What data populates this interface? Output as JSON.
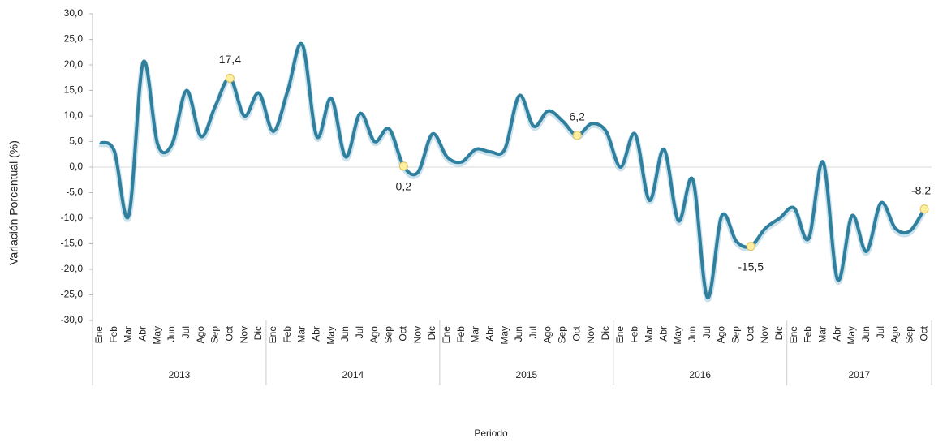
{
  "chart_data": {
    "type": "line",
    "y_label": "Variación Porcentual (%)",
    "x_label": "Periodo",
    "groups": [
      {
        "name": "2013",
        "categories": [
          "Ene",
          "Feb",
          "Mar",
          "Abr",
          "May",
          "Jun",
          "Jul",
          "Ago",
          "Sep",
          "Oct",
          "Nov",
          "Dic"
        ]
      },
      {
        "name": "2014",
        "categories": [
          "Ene",
          "Feb",
          "Mar",
          "Abr",
          "May",
          "Jun",
          "Jul",
          "Ago",
          "Sep",
          "Oct",
          "Nov",
          "Dic"
        ]
      },
      {
        "name": "2015",
        "categories": [
          "Ene",
          "Feb",
          "Mar",
          "Abr",
          "May",
          "Jun",
          "Jul",
          "Ago",
          "Sep",
          "Oct",
          "Nov",
          "Dic"
        ]
      },
      {
        "name": "2016",
        "categories": [
          "Ene",
          "Feb",
          "Mar",
          "Abr",
          "May",
          "Jun",
          "Jul",
          "Ago",
          "Sep",
          "Oct",
          "Nov",
          "Dic"
        ]
      },
      {
        "name": "2017",
        "categories": [
          "Ene",
          "Feb",
          "Mar",
          "Abr",
          "May",
          "Jun",
          "Jul",
          "Ago",
          "Sep",
          "Oct"
        ]
      }
    ],
    "values": [
      4.8,
      3.2,
      -9.5,
      20.5,
      4.5,
      4.5,
      15,
      6,
      12,
      17.4,
      10,
      14.5,
      7,
      15,
      24,
      6,
      13.5,
      2,
      10.5,
      5,
      7.5,
      0.2,
      -1,
      6.5,
      2,
      1,
      3.5,
      3,
      3.5,
      14,
      8,
      11,
      9,
      6.2,
      8.5,
      7,
      0,
      6.5,
      -6.5,
      3.5,
      -10.5,
      -2.5,
      -25.5,
      -9.5,
      -14.5,
      -15.5,
      -12,
      -10,
      -8,
      -14,
      1,
      -22,
      -9.5,
      -16.5,
      -7,
      -12,
      -12.5,
      -8.2
    ],
    "value_labels": [
      null,
      null,
      null,
      null,
      null,
      null,
      null,
      null,
      null,
      "17,4",
      null,
      null,
      null,
      null,
      null,
      null,
      null,
      null,
      null,
      null,
      null,
      "0,2",
      null,
      null,
      null,
      null,
      null,
      null,
      null,
      null,
      null,
      null,
      null,
      "6,2",
      null,
      null,
      null,
      null,
      null,
      null,
      null,
      null,
      null,
      null,
      null,
      "-15,5",
      null,
      null,
      null,
      null,
      null,
      null,
      null,
      null,
      null,
      null,
      null,
      "-8,2"
    ],
    "color": "#2f7f9e",
    "marker_color": "#fdeea0",
    "ylim": [
      -30,
      30
    ],
    "yticks": [
      {
        "value": -30,
        "label": "-30,0"
      },
      {
        "value": -25,
        "label": "-25,0"
      },
      {
        "value": -20,
        "label": "-20,0"
      },
      {
        "value": -15,
        "label": "-15,0"
      },
      {
        "value": -10,
        "label": "-10,0"
      },
      {
        "value": -5,
        "label": "-5,0"
      },
      {
        "value": 0,
        "label": "0,0"
      },
      {
        "value": 5,
        "label": "5,0"
      },
      {
        "value": 10,
        "label": "10,0"
      },
      {
        "value": 15,
        "label": "15,0"
      },
      {
        "value": 20,
        "label": "20,0"
      },
      {
        "value": 25,
        "label": "25,0"
      },
      {
        "value": 30,
        "label": "30,0"
      }
    ]
  }
}
